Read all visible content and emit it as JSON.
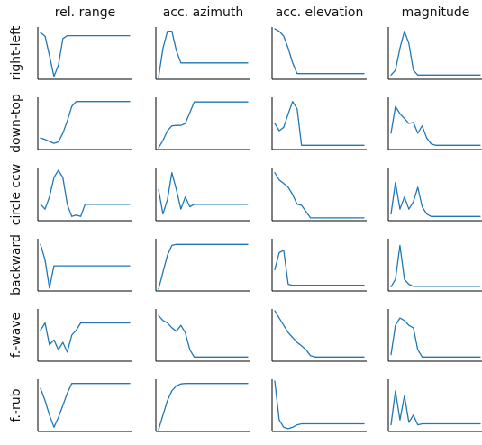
{
  "chart_data": {
    "type": "line",
    "title": "",
    "columns": [
      "rel. range",
      "acc. azimuth",
      "acc. elevation",
      "magnitude"
    ],
    "rows": [
      "right-left",
      "down-top",
      "circle ccw",
      "backward",
      "f.-wave",
      "f.-rub"
    ],
    "xlim": [
      0,
      1
    ],
    "ylim": [
      0,
      1
    ],
    "grid": false,
    "legend": "none",
    "line_color": "#1f77b4",
    "x": [
      0.0,
      0.05,
      0.1,
      0.15,
      0.2,
      0.25,
      0.3,
      0.35,
      0.4,
      0.45,
      0.5,
      0.55,
      0.6,
      0.65,
      0.7,
      0.75,
      0.8,
      0.85,
      0.9,
      0.95,
      1.0
    ],
    "panels": [
      [
        {
          "name": "rel. range",
          "values": [
            0.92,
            0.85,
            0.45,
            0.02,
            0.25,
            0.8,
            0.86,
            0.86,
            0.86,
            0.86,
            0.86,
            0.86,
            0.86,
            0.86,
            0.86,
            0.86,
            0.86,
            0.86,
            0.86,
            0.86,
            0.86
          ]
        },
        {
          "name": "acc. azimuth",
          "values": [
            0.0,
            0.6,
            0.95,
            0.95,
            0.55,
            0.3,
            0.3,
            0.3,
            0.3,
            0.3,
            0.3,
            0.3,
            0.3,
            0.3,
            0.3,
            0.3,
            0.3,
            0.3,
            0.3,
            0.3,
            0.3
          ]
        },
        {
          "name": "acc. elevation",
          "values": [
            1.0,
            0.95,
            0.85,
            0.6,
            0.3,
            0.08,
            0.08,
            0.08,
            0.08,
            0.08,
            0.08,
            0.08,
            0.08,
            0.08,
            0.08,
            0.08,
            0.08,
            0.08,
            0.08,
            0.08,
            0.08
          ]
        },
        {
          "name": "magnitude",
          "values": [
            0.05,
            0.15,
            0.6,
            0.95,
            0.7,
            0.15,
            0.05,
            0.05,
            0.05,
            0.05,
            0.05,
            0.05,
            0.05,
            0.05,
            0.05,
            0.05,
            0.05,
            0.05,
            0.05,
            0.05,
            0.05
          ]
        }
      ],
      [
        {
          "name": "rel. range",
          "values": [
            0.2,
            0.17,
            0.13,
            0.09,
            0.12,
            0.3,
            0.55,
            0.85,
            0.95,
            0.95,
            0.95,
            0.95,
            0.95,
            0.95,
            0.95,
            0.95,
            0.95,
            0.95,
            0.95,
            0.95,
            0.95
          ]
        },
        {
          "name": "acc. azimuth",
          "values": [
            0.0,
            0.15,
            0.35,
            0.45,
            0.46,
            0.46,
            0.5,
            0.72,
            0.94,
            0.94,
            0.94,
            0.94,
            0.94,
            0.94,
            0.94,
            0.94,
            0.94,
            0.94,
            0.94,
            0.94,
            0.94
          ]
        },
        {
          "name": "acc. elevation",
          "values": [
            0.5,
            0.35,
            0.42,
            0.7,
            0.95,
            0.8,
            0.05,
            0.05,
            0.05,
            0.05,
            0.05,
            0.05,
            0.05,
            0.05,
            0.05,
            0.05,
            0.05,
            0.05,
            0.05,
            0.05,
            0.05
          ]
        },
        {
          "name": "magnitude",
          "values": [
            0.3,
            0.85,
            0.7,
            0.6,
            0.5,
            0.52,
            0.3,
            0.45,
            0.2,
            0.08,
            0.05,
            0.05,
            0.05,
            0.05,
            0.05,
            0.05,
            0.05,
            0.05,
            0.05,
            0.05,
            0.05
          ]
        }
      ],
      [
        {
          "name": "rel. range",
          "values": [
            0.3,
            0.2,
            0.45,
            0.85,
            1.0,
            0.85,
            0.3,
            0.05,
            0.08,
            0.05,
            0.3,
            0.3,
            0.3,
            0.3,
            0.3,
            0.3,
            0.3,
            0.3,
            0.3,
            0.3,
            0.3
          ]
        },
        {
          "name": "acc. azimuth",
          "values": [
            0.6,
            0.1,
            0.4,
            0.95,
            0.6,
            0.2,
            0.45,
            0.25,
            0.3,
            0.3,
            0.3,
            0.3,
            0.3,
            0.3,
            0.3,
            0.3,
            0.3,
            0.3,
            0.3,
            0.3,
            0.3
          ]
        },
        {
          "name": "acc. elevation",
          "values": [
            0.95,
            0.8,
            0.73,
            0.65,
            0.5,
            0.3,
            0.28,
            0.15,
            0.02,
            0.02,
            0.02,
            0.02,
            0.02,
            0.02,
            0.02,
            0.02,
            0.02,
            0.02,
            0.02,
            0.02,
            0.02
          ]
        },
        {
          "name": "magnitude",
          "values": [
            0.1,
            0.75,
            0.2,
            0.45,
            0.2,
            0.35,
            0.65,
            0.25,
            0.1,
            0.05,
            0.05,
            0.05,
            0.05,
            0.05,
            0.05,
            0.05,
            0.05,
            0.05,
            0.05,
            0.05,
            0.05
          ]
        }
      ],
      [
        {
          "name": "rel. range",
          "values": [
            0.92,
            0.6,
            0.02,
            0.48,
            0.48,
            0.48,
            0.48,
            0.48,
            0.48,
            0.48,
            0.48,
            0.48,
            0.48,
            0.48,
            0.48,
            0.48,
            0.48,
            0.48,
            0.48,
            0.48,
            0.48
          ]
        },
        {
          "name": "acc. azimuth",
          "values": [
            0.0,
            0.35,
            0.7,
            0.9,
            0.92,
            0.92,
            0.92,
            0.92,
            0.92,
            0.92,
            0.92,
            0.92,
            0.92,
            0.92,
            0.92,
            0.92,
            0.92,
            0.92,
            0.92,
            0.92,
            0.92
          ]
        },
        {
          "name": "acc. elevation",
          "values": [
            0.4,
            0.75,
            0.8,
            0.1,
            0.08,
            0.08,
            0.08,
            0.08,
            0.08,
            0.08,
            0.08,
            0.08,
            0.08,
            0.08,
            0.08,
            0.08,
            0.08,
            0.08,
            0.08,
            0.08,
            0.08
          ]
        },
        {
          "name": "magnitude",
          "values": [
            0.05,
            0.2,
            0.9,
            0.2,
            0.1,
            0.06,
            0.06,
            0.06,
            0.06,
            0.06,
            0.06,
            0.06,
            0.06,
            0.06,
            0.06,
            0.06,
            0.06,
            0.06,
            0.06,
            0.06,
            0.06
          ]
        }
      ],
      [
        {
          "name": "rel. range",
          "values": [
            0.6,
            0.75,
            0.3,
            0.4,
            0.2,
            0.35,
            0.15,
            0.5,
            0.6,
            0.75,
            0.75,
            0.75,
            0.75,
            0.75,
            0.75,
            0.75,
            0.75,
            0.75,
            0.75,
            0.75,
            0.75
          ]
        },
        {
          "name": "acc. azimuth",
          "values": [
            0.9,
            0.8,
            0.75,
            0.65,
            0.58,
            0.7,
            0.55,
            0.2,
            0.05,
            0.05,
            0.05,
            0.05,
            0.05,
            0.05,
            0.05,
            0.05,
            0.05,
            0.05,
            0.05,
            0.05,
            0.05
          ]
        },
        {
          "name": "acc. elevation",
          "values": [
            1.0,
            0.85,
            0.7,
            0.55,
            0.45,
            0.35,
            0.28,
            0.2,
            0.08,
            0.05,
            0.05,
            0.05,
            0.05,
            0.05,
            0.05,
            0.05,
            0.05,
            0.05,
            0.05,
            0.05,
            0.05
          ]
        },
        {
          "name": "magnitude",
          "values": [
            0.1,
            0.7,
            0.85,
            0.8,
            0.7,
            0.65,
            0.2,
            0.05,
            0.05,
            0.05,
            0.05,
            0.05,
            0.05,
            0.05,
            0.05,
            0.05,
            0.05,
            0.05,
            0.05,
            0.05,
            0.05
          ]
        }
      ],
      [
        {
          "name": "rel. range",
          "values": [
            0.85,
            0.6,
            0.3,
            0.05,
            0.25,
            0.5,
            0.75,
            0.95,
            0.95,
            0.95,
            0.95,
            0.95,
            0.95,
            0.95,
            0.95,
            0.95,
            0.95,
            0.95,
            0.95,
            0.95,
            0.95
          ]
        },
        {
          "name": "acc. azimuth",
          "values": [
            0.0,
            0.3,
            0.6,
            0.8,
            0.9,
            0.94,
            0.95,
            0.95,
            0.95,
            0.95,
            0.95,
            0.95,
            0.95,
            0.95,
            0.95,
            0.95,
            0.95,
            0.95,
            0.95,
            0.95,
            0.95
          ]
        },
        {
          "name": "acc. elevation",
          "values": [
            1.0,
            0.2,
            0.05,
            0.02,
            0.05,
            0.1,
            0.12,
            0.12,
            0.12,
            0.12,
            0.12,
            0.12,
            0.12,
            0.12,
            0.12,
            0.12,
            0.12,
            0.12,
            0.12,
            0.12,
            0.12
          ]
        },
        {
          "name": "magnitude",
          "values": [
            0.1,
            0.8,
            0.2,
            0.7,
            0.15,
            0.3,
            0.1,
            0.12,
            0.12,
            0.12,
            0.12,
            0.12,
            0.12,
            0.12,
            0.12,
            0.12,
            0.12,
            0.12,
            0.12,
            0.12,
            0.12
          ]
        }
      ]
    ]
  }
}
